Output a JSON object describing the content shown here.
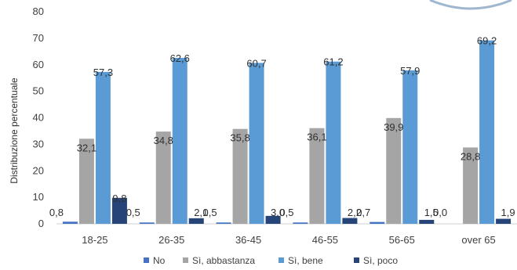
{
  "chart_data": {
    "type": "bar",
    "ylabel": "Distribuzione percentuale",
    "ylim": [
      0,
      80
    ],
    "yticks": [
      0,
      10,
      20,
      30,
      40,
      50,
      60,
      70,
      80
    ],
    "categories": [
      "18-25",
      "26-35",
      "36-45",
      "46-55",
      "56-65",
      "over 65"
    ],
    "series": [
      {
        "name": "No",
        "color": "#4472C4",
        "values": [
          0.8,
          0.5,
          0.5,
          0.5,
          0.7,
          0.0
        ],
        "labels": [
          "0,8",
          "0,5",
          "0,5",
          "0,5",
          "0,7",
          "0,0"
        ]
      },
      {
        "name": "Sì, abbastanza",
        "color": "#A5A5A5",
        "values": [
          32.1,
          34.8,
          35.8,
          36.1,
          39.9,
          28.8
        ],
        "labels": [
          "32,1",
          "34,8",
          "35,8",
          "36,1",
          "39,9",
          "28,8"
        ]
      },
      {
        "name": "Sì, bene",
        "color": "#5B9BD5",
        "values": [
          57.3,
          62.6,
          60.7,
          61.2,
          57.9,
          69.2
        ],
        "labels": [
          "57,3",
          "62,6",
          "60,7",
          "61,2",
          "57,9",
          "69,2"
        ]
      },
      {
        "name": "Sì, poco",
        "color": "#264478",
        "values": [
          9.8,
          2.1,
          3.0,
          2.2,
          1.5,
          1.9
        ],
        "labels": [
          "9,8",
          "2,1",
          "3,0",
          "2,2",
          "1,5",
          "1,9"
        ]
      }
    ],
    "legend_position": "bottom",
    "grid": false
  }
}
